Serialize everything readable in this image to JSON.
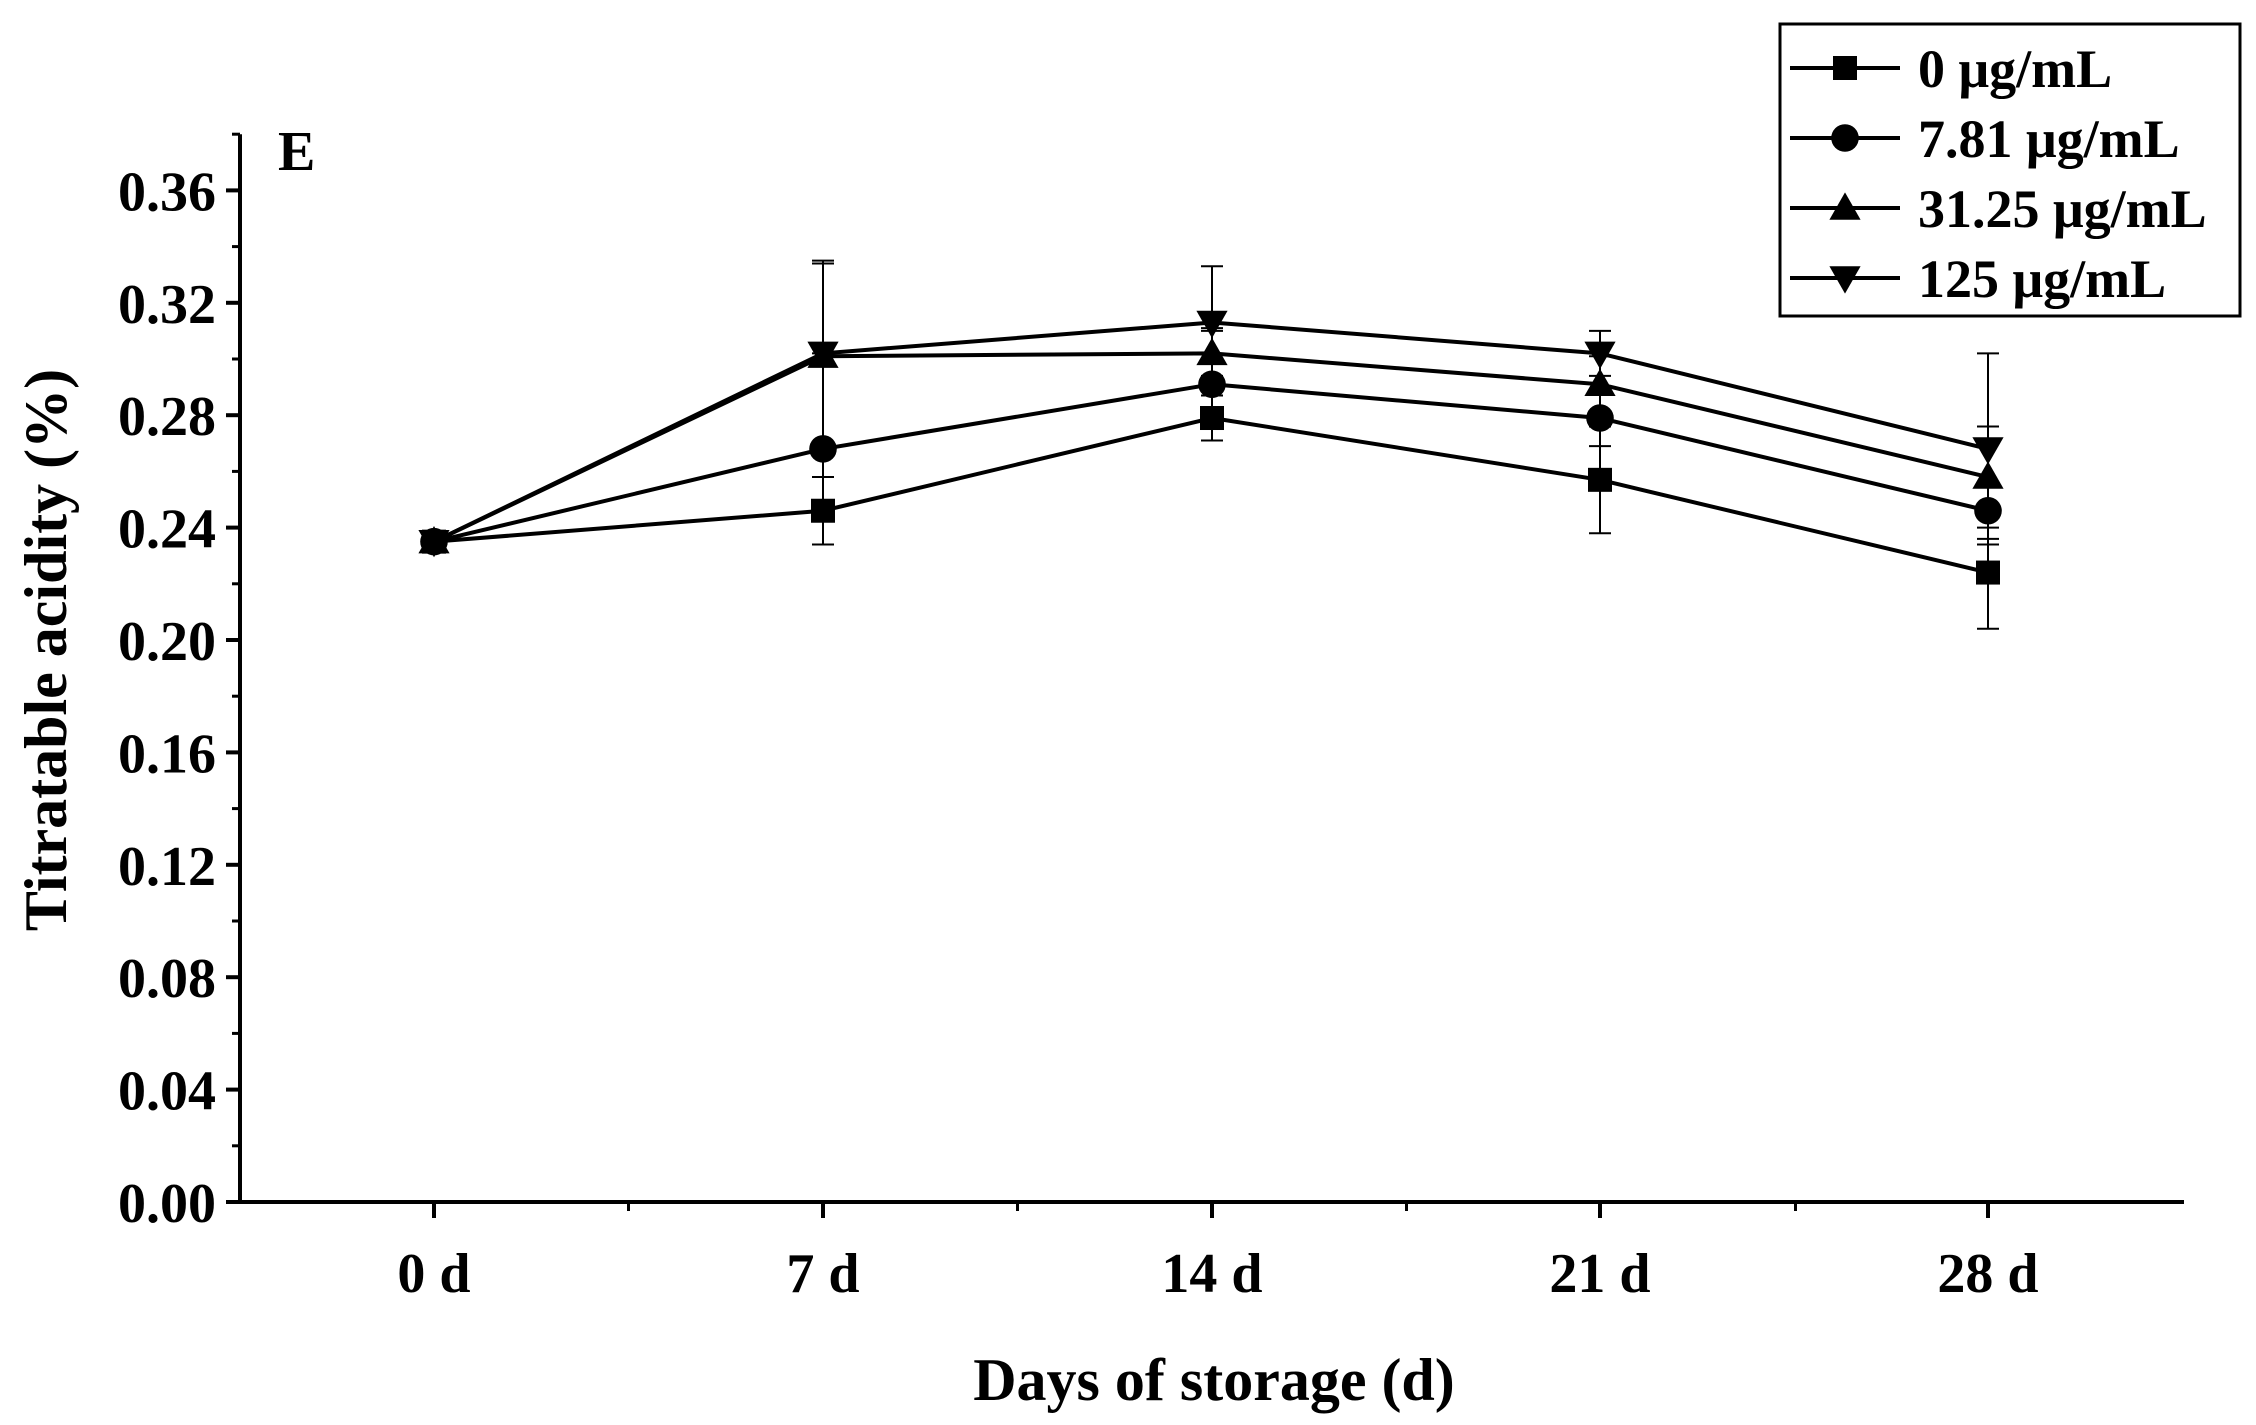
{
  "chart_data": {
    "type": "line",
    "panel_label": "E",
    "title": "",
    "xlabel": "Days of storage (d)",
    "ylabel": "Titratable acidity (%)",
    "categories": [
      "0 d",
      "7 d",
      "14 d",
      "21 d",
      "28 d"
    ],
    "ylim": [
      0,
      0.38
    ],
    "yticks": [
      "0.00",
      "0.04",
      "0.08",
      "0.12",
      "0.16",
      "0.20",
      "0.24",
      "0.28",
      "0.32",
      "0.36"
    ],
    "grid": false,
    "legend_position": "top-right",
    "series": [
      {
        "name": "0 μg/mL",
        "marker": "square",
        "values": [
          0.235,
          0.246,
          0.279,
          0.257,
          0.224
        ],
        "errors": [
          0,
          0.012,
          0.008,
          0.019,
          0.02
        ]
      },
      {
        "name": "7.81 μg/mL",
        "marker": "circle",
        "values": [
          0.235,
          0.268,
          0.291,
          0.279,
          0.246
        ],
        "errors": [
          0,
          0.034,
          0.02,
          0.01,
          0.01
        ]
      },
      {
        "name": "31.25 μg/mL",
        "marker": "triangle-up",
        "values": [
          0.235,
          0.301,
          0.302,
          0.291,
          0.258
        ],
        "errors": [
          0,
          0.033,
          0.008,
          0.01,
          0.018
        ]
      },
      {
        "name": "125 μg/mL",
        "marker": "triangle-down",
        "values": [
          0.235,
          0.302,
          0.313,
          0.302,
          0.268
        ],
        "errors": [
          0,
          0.033,
          0.02,
          0.008,
          0.034
        ]
      }
    ]
  }
}
